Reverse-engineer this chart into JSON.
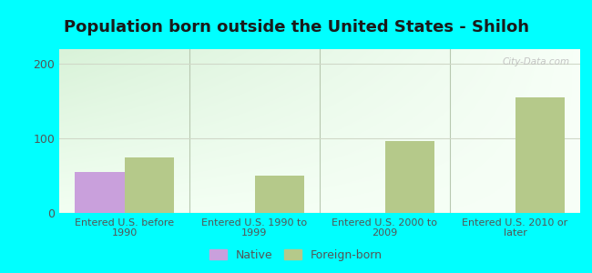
{
  "title": "Population born outside the United States - Shiloh",
  "background_color": "#00FFFF",
  "categories": [
    "Entered U.S. before\n1990",
    "Entered U.S. 1990 to\n1999",
    "Entered U.S. 2000 to\n2009",
    "Entered U.S. 2010 or\nlater"
  ],
  "native_values": [
    55,
    0,
    0,
    0
  ],
  "foreign_born_values": [
    75,
    50,
    97,
    155
  ],
  "native_color": "#c9a0dc",
  "foreign_born_color": "#b5c98a",
  "ylim": [
    0,
    220
  ],
  "yticks": [
    0,
    100,
    200
  ],
  "bar_width": 0.38,
  "title_fontsize": 13,
  "tick_label_color": "#555555",
  "grid_color": "#d0d8c8",
  "watermark": "City-Data.com"
}
